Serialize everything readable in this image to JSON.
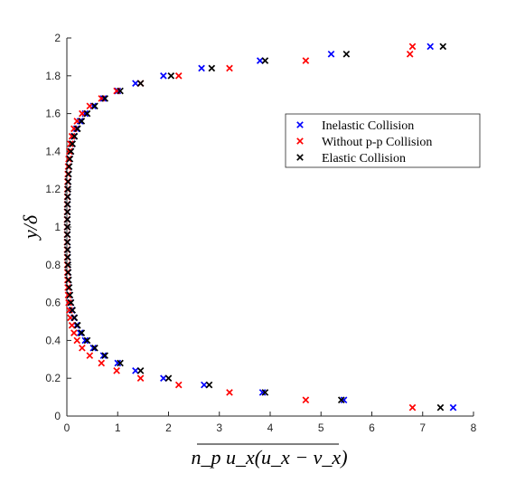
{
  "chart_data": {
    "type": "scatter",
    "xlabel": "n_p u_x(u_x − v_x)",
    "ylabel": "y/δ",
    "xlim": [
      0,
      8
    ],
    "ylim": [
      0,
      2
    ],
    "xticks": [
      0,
      1,
      2,
      3,
      4,
      5,
      6,
      7,
      8
    ],
    "yticks": [
      0,
      0.2,
      0.4,
      0.6,
      0.8,
      1,
      1.2,
      1.4,
      1.6,
      1.8,
      2
    ],
    "xtick_labels": [
      "0",
      "1",
      "2",
      "3",
      "4",
      "5",
      "6",
      "7",
      "8"
    ],
    "ytick_labels": [
      "0",
      "0.2",
      "0.4",
      "0.6",
      "0.8",
      "1",
      "1.2",
      "1.4",
      "1.6",
      "1.8",
      "2"
    ],
    "marker": "x",
    "grid": false,
    "legend": {
      "position": "right-upper",
      "entries": [
        "Inelastic Collision",
        "Without p-p Collision",
        "Elastic Collision"
      ]
    },
    "series": [
      {
        "name": "Inelastic Collision",
        "color": "#0000ff",
        "points": [
          [
            7.6,
            0.045
          ],
          [
            5.45,
            0.085
          ],
          [
            3.85,
            0.125
          ],
          [
            2.7,
            0.165
          ],
          [
            1.9,
            0.2
          ],
          [
            1.35,
            0.24
          ],
          [
            1.0,
            0.28
          ],
          [
            0.72,
            0.32
          ],
          [
            0.52,
            0.36
          ],
          [
            0.36,
            0.4
          ],
          [
            0.26,
            0.44
          ],
          [
            0.19,
            0.48
          ],
          [
            0.14,
            0.52
          ],
          [
            0.1,
            0.56
          ],
          [
            0.075,
            0.6
          ],
          [
            0.055,
            0.64
          ],
          [
            0.04,
            0.68
          ],
          [
            0.03,
            0.72
          ],
          [
            0.024,
            0.76
          ],
          [
            0.018,
            0.8
          ],
          [
            0.014,
            0.84
          ],
          [
            0.011,
            0.88
          ],
          [
            0.009,
            0.92
          ],
          [
            0.008,
            0.96
          ],
          [
            0.007,
            1.0
          ],
          [
            0.008,
            1.04
          ],
          [
            0.009,
            1.08
          ],
          [
            0.011,
            1.12
          ],
          [
            0.014,
            1.16
          ],
          [
            0.018,
            1.2
          ],
          [
            0.024,
            1.24
          ],
          [
            0.03,
            1.28
          ],
          [
            0.04,
            1.32
          ],
          [
            0.055,
            1.36
          ],
          [
            0.075,
            1.4
          ],
          [
            0.1,
            1.44
          ],
          [
            0.14,
            1.48
          ],
          [
            0.19,
            1.52
          ],
          [
            0.26,
            1.56
          ],
          [
            0.36,
            1.6
          ],
          [
            0.52,
            1.64
          ],
          [
            0.72,
            1.68
          ],
          [
            1.0,
            1.72
          ],
          [
            1.35,
            1.76
          ],
          [
            1.9,
            1.8
          ],
          [
            2.65,
            1.84
          ],
          [
            3.8,
            1.88
          ],
          [
            5.2,
            1.915
          ],
          [
            7.15,
            1.955
          ]
        ]
      },
      {
        "name": "Without p-p Collision",
        "color": "#ff0000",
        "points": [
          [
            6.8,
            0.045
          ],
          [
            4.7,
            0.085
          ],
          [
            3.2,
            0.125
          ],
          [
            2.2,
            0.165
          ],
          [
            1.45,
            0.2
          ],
          [
            0.98,
            0.24
          ],
          [
            0.68,
            0.28
          ],
          [
            0.45,
            0.32
          ],
          [
            0.3,
            0.36
          ],
          [
            0.2,
            0.4
          ],
          [
            0.14,
            0.44
          ],
          [
            0.1,
            0.48
          ],
          [
            0.07,
            0.52
          ],
          [
            0.05,
            0.56
          ],
          [
            0.035,
            0.6
          ],
          [
            0.025,
            0.64
          ],
          [
            0.018,
            0.68
          ],
          [
            0.013,
            0.72
          ],
          [
            0.01,
            0.76
          ],
          [
            0.008,
            0.8
          ],
          [
            0.006,
            0.84
          ],
          [
            0.005,
            0.88
          ],
          [
            0.004,
            0.92
          ],
          [
            0.004,
            0.96
          ],
          [
            0.004,
            1.0
          ],
          [
            0.004,
            1.04
          ],
          [
            0.005,
            1.08
          ],
          [
            0.006,
            1.12
          ],
          [
            0.008,
            1.16
          ],
          [
            0.01,
            1.2
          ],
          [
            0.013,
            1.24
          ],
          [
            0.018,
            1.28
          ],
          [
            0.025,
            1.32
          ],
          [
            0.035,
            1.36
          ],
          [
            0.05,
            1.4
          ],
          [
            0.07,
            1.44
          ],
          [
            0.1,
            1.48
          ],
          [
            0.14,
            1.52
          ],
          [
            0.2,
            1.56
          ],
          [
            0.3,
            1.6
          ],
          [
            0.45,
            1.64
          ],
          [
            0.68,
            1.68
          ],
          [
            0.98,
            1.72
          ],
          [
            1.45,
            1.76
          ],
          [
            2.2,
            1.8
          ],
          [
            3.2,
            1.84
          ],
          [
            4.7,
            1.88
          ],
          [
            6.75,
            1.915
          ],
          [
            6.8,
            1.955
          ]
        ]
      },
      {
        "name": "Elastic Collision",
        "color": "#000000",
        "points": [
          [
            7.35,
            0.045
          ],
          [
            5.4,
            0.085
          ],
          [
            3.9,
            0.125
          ],
          [
            2.8,
            0.165
          ],
          [
            2.0,
            0.2
          ],
          [
            1.45,
            0.24
          ],
          [
            1.05,
            0.28
          ],
          [
            0.75,
            0.32
          ],
          [
            0.55,
            0.36
          ],
          [
            0.4,
            0.4
          ],
          [
            0.29,
            0.44
          ],
          [
            0.21,
            0.48
          ],
          [
            0.15,
            0.52
          ],
          [
            0.11,
            0.56
          ],
          [
            0.08,
            0.6
          ],
          [
            0.06,
            0.64
          ],
          [
            0.045,
            0.68
          ],
          [
            0.034,
            0.72
          ],
          [
            0.026,
            0.76
          ],
          [
            0.02,
            0.8
          ],
          [
            0.016,
            0.84
          ],
          [
            0.013,
            0.88
          ],
          [
            0.011,
            0.92
          ],
          [
            0.01,
            0.96
          ],
          [
            0.01,
            1.0
          ],
          [
            0.01,
            1.04
          ],
          [
            0.011,
            1.08
          ],
          [
            0.013,
            1.12
          ],
          [
            0.016,
            1.16
          ],
          [
            0.02,
            1.2
          ],
          [
            0.026,
            1.24
          ],
          [
            0.034,
            1.28
          ],
          [
            0.045,
            1.32
          ],
          [
            0.06,
            1.36
          ],
          [
            0.08,
            1.4
          ],
          [
            0.11,
            1.44
          ],
          [
            0.15,
            1.48
          ],
          [
            0.21,
            1.52
          ],
          [
            0.29,
            1.56
          ],
          [
            0.4,
            1.6
          ],
          [
            0.55,
            1.64
          ],
          [
            0.75,
            1.68
          ],
          [
            1.05,
            1.72
          ],
          [
            1.45,
            1.76
          ],
          [
            2.05,
            1.8
          ],
          [
            2.85,
            1.84
          ],
          [
            3.9,
            1.88
          ],
          [
            5.5,
            1.915
          ],
          [
            7.4,
            1.955
          ]
        ]
      }
    ]
  }
}
